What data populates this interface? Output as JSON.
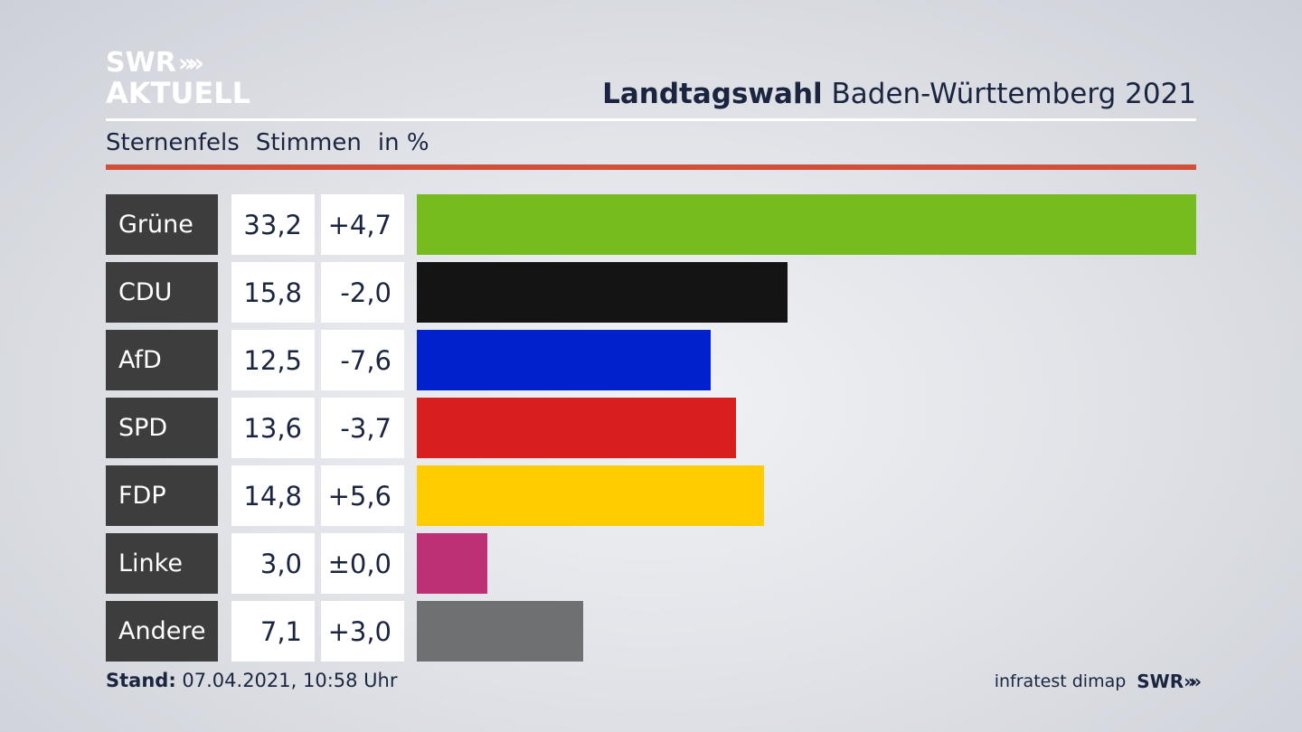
{
  "logo": {
    "line1": "SWR",
    "chevrons": "»",
    "line2": "AKTUELL"
  },
  "title": {
    "bold": "Landtagswahl",
    "rest": " Baden-Württemberg 2021"
  },
  "subhead": {
    "place": "Sternenfels",
    "metric": "Stimmen",
    "unit": "in %"
  },
  "footer": {
    "stand_label": "Stand:",
    "stand_value": " 07.04.2021, 10:58 Uhr",
    "source": "infratest dimap",
    "brand": "SWR",
    "brand_chevrons": "»"
  },
  "chart_data": {
    "type": "bar",
    "orientation": "horizontal",
    "title": "Landtagswahl Baden-Württemberg 2021",
    "subtitle": "Sternenfels Stimmen in %",
    "categories": [
      "Grüne",
      "CDU",
      "AfD",
      "SPD",
      "FDP",
      "Linke",
      "Andere"
    ],
    "values": [
      33.2,
      15.8,
      12.5,
      13.6,
      14.8,
      3.0,
      7.1
    ],
    "value_labels": [
      "33,2",
      "15,8",
      "12,5",
      "13,6",
      "14,8",
      "3,0",
      "7,1"
    ],
    "changes": [
      4.7,
      -2.0,
      -7.6,
      -3.7,
      5.6,
      0.0,
      3.0
    ],
    "change_labels": [
      "+4,7",
      "-2,0",
      "-7,6",
      "-3,7",
      "+5,6",
      "±0,0",
      "+3,0"
    ],
    "colors": [
      "#77bc1f",
      "#141414",
      "#0021cc",
      "#d81e1e",
      "#ffcc00",
      "#be3075",
      "#6f7072"
    ],
    "xlim": [
      0,
      33.2
    ]
  }
}
